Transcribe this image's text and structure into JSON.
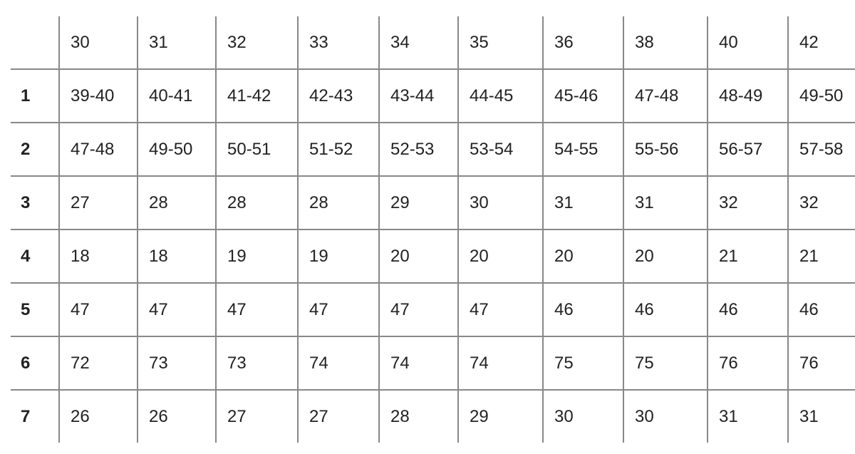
{
  "table": {
    "header": [
      "",
      "30",
      "31",
      "32",
      "33",
      "34",
      "35",
      "36",
      "38",
      "40",
      "42"
    ],
    "rows": [
      {
        "label": "1",
        "cells": [
          "39-40",
          "40-41",
          "41-42",
          "42-43",
          "43-44",
          "44-45",
          "45-46",
          "47-48",
          "48-49",
          "49-50"
        ]
      },
      {
        "label": "2",
        "cells": [
          "47-48",
          "49-50",
          "50-51",
          "51-52",
          "52-53",
          "53-54",
          "54-55",
          "55-56",
          "56-57",
          "57-58"
        ]
      },
      {
        "label": "3",
        "cells": [
          "27",
          "28",
          "28",
          "28",
          "29",
          "30",
          "31",
          "31",
          "32",
          "32"
        ]
      },
      {
        "label": "4",
        "cells": [
          "18",
          "18",
          "19",
          "19",
          "20",
          "20",
          "20",
          "20",
          "21",
          "21"
        ]
      },
      {
        "label": "5",
        "cells": [
          "47",
          "47",
          "47",
          "47",
          "47",
          "47",
          "46",
          "46",
          "46",
          "46"
        ]
      },
      {
        "label": "6",
        "cells": [
          "72",
          "73",
          "73",
          "74",
          "74",
          "74",
          "75",
          "75",
          "76",
          "76"
        ]
      },
      {
        "label": "7",
        "cells": [
          "26",
          "26",
          "27",
          "27",
          "28",
          "29",
          "30",
          "30",
          "31",
          "31"
        ]
      }
    ]
  }
}
